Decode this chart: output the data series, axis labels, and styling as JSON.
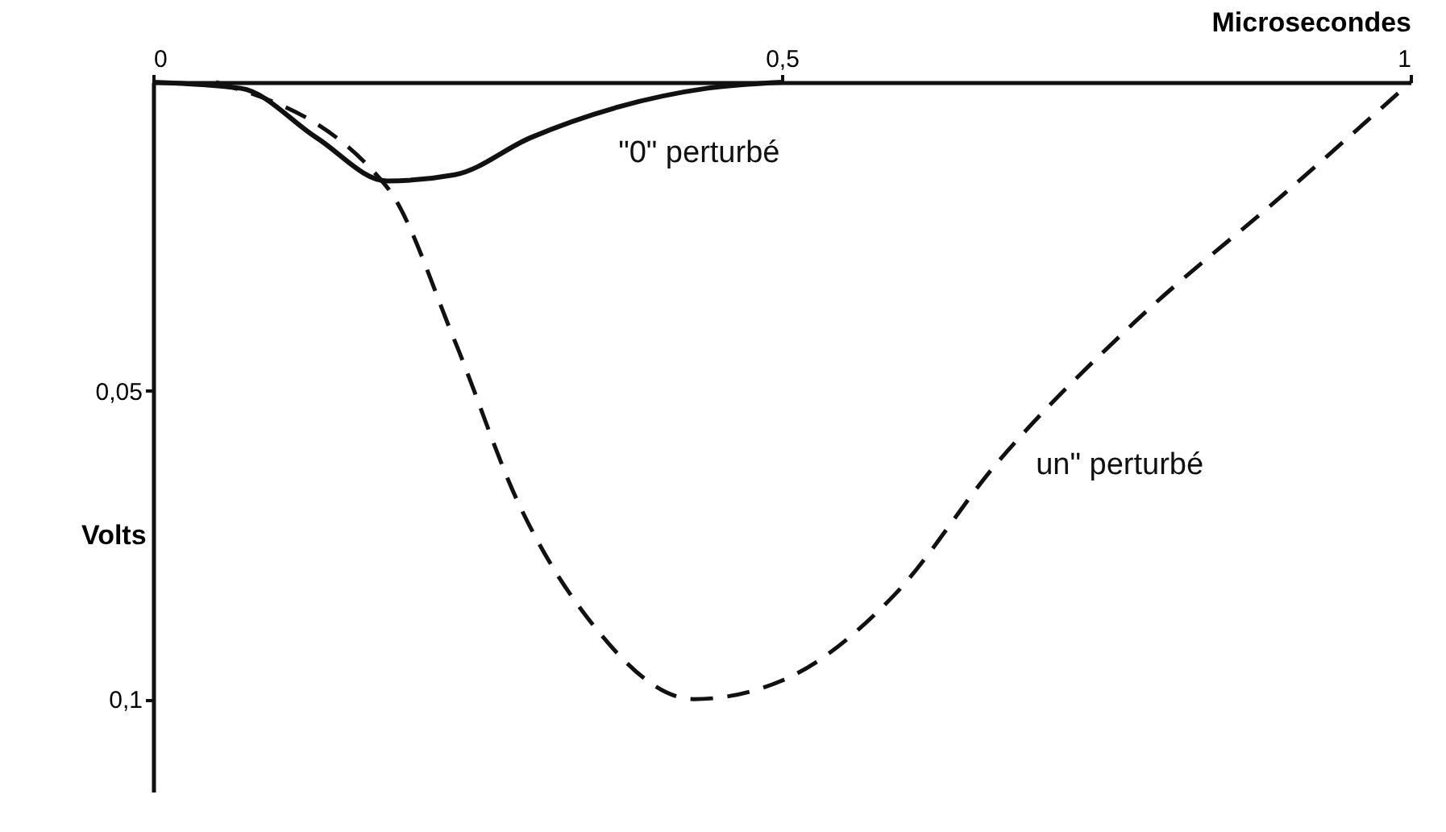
{
  "chart_data": {
    "type": "line",
    "xlabel": "Microsecondes",
    "ylabel": "Volts",
    "xlim": [
      0,
      1
    ],
    "xticks": [
      0,
      {
        "value": 0.5,
        "label": "0,5"
      },
      1
    ],
    "ylim": [
      0.115,
      0
    ],
    "yticks": [
      {
        "value": 0.05,
        "label": "0,05"
      },
      {
        "value": 0.1,
        "label": "0,1"
      }
    ],
    "grid": false,
    "marker": "none",
    "series": [
      {
        "name": "\"0\" perturbé",
        "color": "#111111",
        "line_style": "solid",
        "x": [
          0,
          0.07,
          0.13,
          0.186,
          0.24,
          0.3,
          0.37,
          0.44,
          0.5
        ],
        "values": [
          0,
          0.001,
          0.009,
          0.016,
          0.015,
          0.009,
          0.004,
          0.001,
          0
        ]
      },
      {
        "name": "un\" perturbé",
        "color": "#111111",
        "line_style": "dashed",
        "x": [
          0.05,
          0.186,
          0.24,
          0.29,
          0.35,
          0.43,
          0.5,
          0.59,
          0.67,
          0.78,
          0.9,
          1.0
        ],
        "values": [
          0,
          0.017,
          0.042,
          0.068,
          0.088,
          0.1,
          0.097,
          0.083,
          0.062,
          0.039,
          0.018,
          0
        ]
      }
    ]
  }
}
